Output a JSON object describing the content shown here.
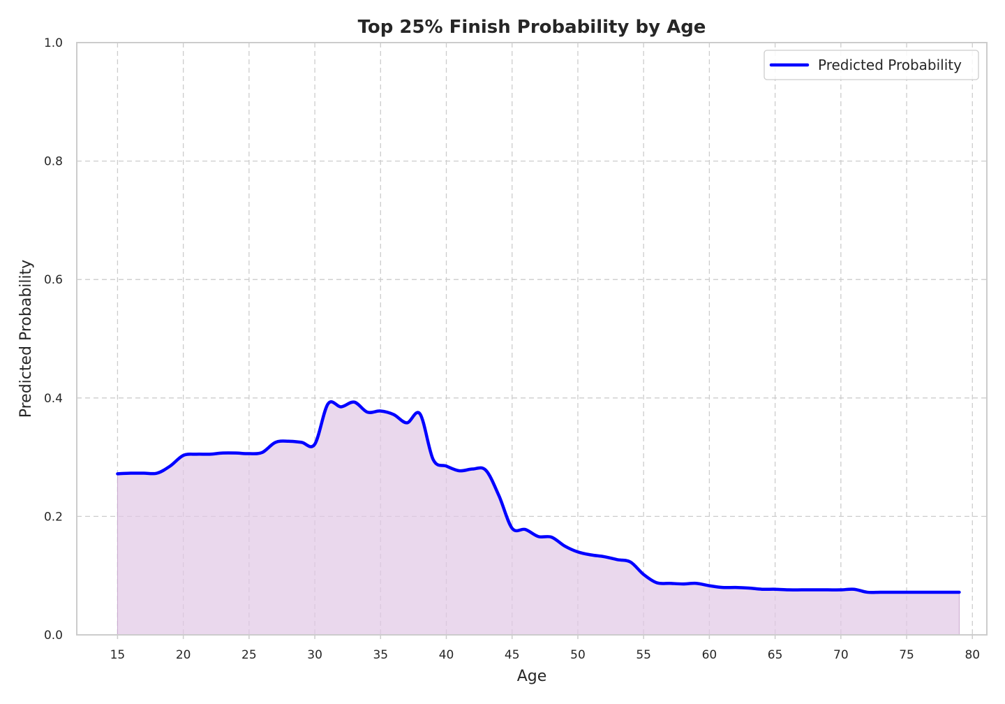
{
  "chart_data": {
    "type": "area",
    "title": "Top 25% Finish Probability by Age",
    "xlabel": "Age",
    "ylabel": "Predicted Probability",
    "xlim": [
      11.9,
      81.1
    ],
    "ylim": [
      0.0,
      1.0
    ],
    "xticks": [
      15,
      20,
      25,
      30,
      35,
      40,
      45,
      50,
      55,
      60,
      65,
      70,
      75,
      80
    ],
    "yticks": [
      0.0,
      0.2,
      0.4,
      0.6,
      0.8,
      1.0
    ],
    "xtick_labels": [
      "15",
      "20",
      "25",
      "30",
      "35",
      "40",
      "45",
      "50",
      "55",
      "60",
      "65",
      "70",
      "75",
      "80"
    ],
    "ytick_labels": [
      "0.0",
      "0.2",
      "0.4",
      "0.6",
      "0.8",
      "1.0"
    ],
    "grid": true,
    "legend_position": "top-right",
    "series": [
      {
        "name": "Predicted Probability",
        "color": "#0000ff",
        "fill_color": "#e1c8e6",
        "x": [
          15,
          16,
          17,
          18,
          19,
          20,
          21,
          22,
          23,
          24,
          25,
          26,
          27,
          28,
          29,
          30,
          31,
          32,
          33,
          34,
          35,
          36,
          37,
          38,
          39,
          40,
          41,
          42,
          43,
          44,
          45,
          46,
          47,
          48,
          49,
          50,
          51,
          52,
          53,
          54,
          55,
          56,
          57,
          58,
          59,
          60,
          61,
          62,
          63,
          64,
          65,
          66,
          67,
          68,
          69,
          70,
          71,
          72,
          73,
          74,
          75,
          76,
          77,
          78,
          79
        ],
        "y": [
          0.272,
          0.273,
          0.273,
          0.273,
          0.285,
          0.303,
          0.305,
          0.305,
          0.307,
          0.307,
          0.306,
          0.308,
          0.325,
          0.327,
          0.325,
          0.322,
          0.39,
          0.385,
          0.393,
          0.376,
          0.378,
          0.372,
          0.358,
          0.373,
          0.296,
          0.285,
          0.277,
          0.28,
          0.278,
          0.235,
          0.18,
          0.178,
          0.166,
          0.165,
          0.15,
          0.14,
          0.135,
          0.132,
          0.127,
          0.123,
          0.102,
          0.088,
          0.087,
          0.086,
          0.087,
          0.083,
          0.08,
          0.08,
          0.079,
          0.077,
          0.077,
          0.076,
          0.076,
          0.076,
          0.076,
          0.076,
          0.077,
          0.072,
          0.072,
          0.072,
          0.072,
          0.072,
          0.072,
          0.072,
          0.072
        ]
      }
    ]
  }
}
